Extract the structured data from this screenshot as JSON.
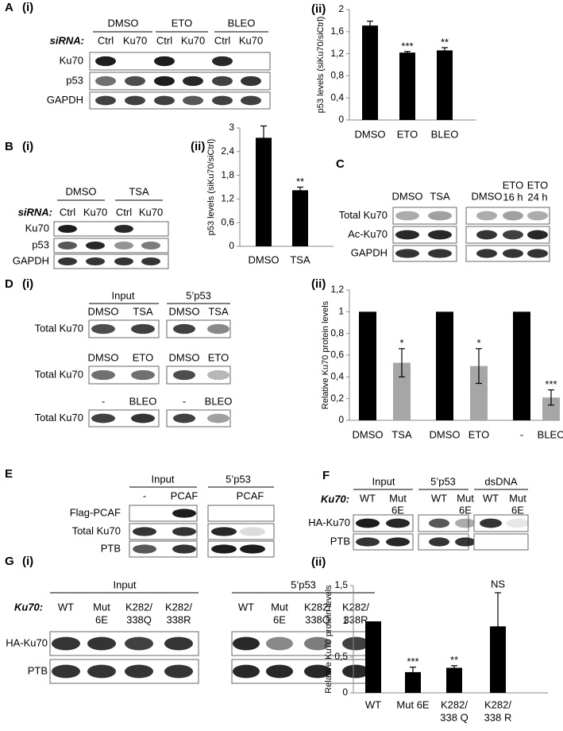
{
  "chart_data": [
    {
      "type": "bar",
      "title": "(ii)",
      "y_label": "p53 levels (siKu70/siCtrl)",
      "categories": [
        "DMSO",
        "ETO",
        "BLEO"
      ],
      "values": [
        1.71,
        1.22,
        1.26
      ],
      "errors": [
        0.08,
        0.02,
        0.05
      ],
      "annotations": [
        null,
        "***",
        "**"
      ],
      "color": "#000000",
      "ylim": [
        0,
        2
      ],
      "yticks": [
        0,
        {
          "value": 0.4,
          "label": "0,4"
        },
        {
          "value": 0.8,
          "label": "0,8"
        },
        {
          "value": 1.2,
          "label": "1,2"
        },
        {
          "value": 1.6,
          "label": "1,6"
        },
        2
      ]
    },
    {
      "type": "bar",
      "title": "(ii)",
      "y_label": "p53 levels (siKu70/siCtrl)",
      "categories": [
        "DMSO",
        "TSA"
      ],
      "values": [
        2.75,
        1.42
      ],
      "errors": [
        0.3,
        0.08
      ],
      "annotations": [
        null,
        "**"
      ],
      "color": "#000000",
      "ylim": [
        0,
        3
      ],
      "yticks": [
        0,
        {
          "value": 0.6,
          "label": "0,6"
        },
        {
          "value": 1.2,
          "label": "1,2"
        },
        {
          "value": 1.8,
          "label": "1,8"
        },
        {
          "value": 2.4,
          "label": "2,4"
        },
        3
      ]
    },
    {
      "type": "bar",
      "title": "(ii)",
      "y_label": "Relative Ku70 protein levels",
      "categories": [
        "DMSO",
        "TSA",
        "DMSO",
        "ETO",
        "-",
        "BLEO"
      ],
      "values": [
        1,
        0.53,
        1,
        0.5,
        1,
        0.21
      ],
      "errors": [
        null,
        0.13,
        null,
        0.16,
        null,
        0.07
      ],
      "annotations": [
        null,
        "*",
        null,
        "*",
        null,
        "***"
      ],
      "colors": [
        "#000000",
        "#a6a6a6",
        "#000000",
        "#a6a6a6",
        "#000000",
        "#a6a6a6"
      ],
      "ylim": [
        0,
        1.2
      ],
      "yticks": [
        0,
        {
          "value": 0.2,
          "label": "0,2"
        },
        {
          "value": 0.4,
          "label": "0,4"
        },
        {
          "value": 0.6,
          "label": "0,6"
        },
        {
          "value": 0.8,
          "label": "0,8"
        },
        1,
        {
          "value": 1.2,
          "label": "1,2"
        }
      ]
    },
    {
      "type": "bar",
      "title": "(ii)",
      "y_label": "Relative Ku70 protein levels",
      "categories": [
        "WT",
        "Mut 6E",
        [
          "K282/",
          "338 Q"
        ],
        [
          "K282/",
          "338 R"
        ]
      ],
      "values": [
        1,
        0.29,
        0.35,
        0.93
      ],
      "errors": [
        null,
        0.07,
        0.03,
        0.47
      ],
      "annotations": [
        null,
        "***",
        "**",
        "NS"
      ],
      "color": "#000000",
      "ylim": [
        0,
        1.5
      ],
      "yticks": [
        0,
        {
          "value": 0.5,
          "label": "0,5"
        },
        1,
        {
          "value": 1.5,
          "label": "1,5"
        }
      ]
    }
  ],
  "panels": {
    "A": {
      "label": "A",
      "blot": {
        "label": "(i)",
        "groups": [
          "DMSO",
          "ETO",
          "BLEO"
        ],
        "lane_key": "siRNA:",
        "lanes": [
          "Ctrl",
          "Ku70",
          "Ctrl",
          "Ku70",
          "Ctrl",
          "Ku70"
        ],
        "rows": [
          "Ku70",
          "p53",
          "GAPDH"
        ]
      }
    },
    "B": {
      "label": "B",
      "blot": {
        "label": "(i)",
        "groups": [
          "DMSO",
          "TSA"
        ],
        "lane_key": "siRNA:",
        "lanes": [
          "Ctrl",
          "Ku70",
          "Ctrl",
          "Ku70"
        ],
        "rows": [
          "Ku70",
          "p53",
          "GAPDH"
        ]
      }
    },
    "C": {
      "label": "C",
      "lanes": [
        "DMSO",
        "TSA",
        "DMSO",
        [
          "ETO",
          "16 h"
        ],
        [
          "ETO",
          "24 h"
        ]
      ],
      "rows": [
        "Total Ku70",
        "Ac-Ku70",
        "GAPDH"
      ]
    },
    "D": {
      "label": "D",
      "blot": {
        "label": "(i)",
        "groups": [
          "Input",
          "5’p53"
        ],
        "blocks": [
          {
            "lanes": [
              "DMSO",
              "TSA",
              "DMSO",
              "TSA"
            ],
            "row": "Total Ku70"
          },
          {
            "lanes": [
              "DMSO",
              "ETO",
              "DMSO",
              "ETO"
            ],
            "row": "Total Ku70"
          },
          {
            "lanes": [
              "-",
              "BLEO",
              "-",
              "BLEO"
            ],
            "row": "Total Ku70"
          }
        ]
      }
    },
    "E": {
      "label": "E",
      "groups": [
        "Input",
        "5’p53"
      ],
      "lanes": [
        "-",
        "PCAF",
        "PCAF"
      ],
      "rows": [
        "Flag-PCAF",
        "Total Ku70",
        "PTB"
      ]
    },
    "F": {
      "label": "F",
      "groups": [
        "Input",
        "5’p53",
        "dsDNA"
      ],
      "lane_key": "Ku70:",
      "lanes": [
        "WT",
        [
          "Mut",
          "6E"
        ],
        "WT",
        [
          "Mut",
          "6E"
        ],
        "WT",
        [
          "Mut",
          "6E"
        ]
      ],
      "rows": [
        "HA-Ku70",
        "PTB"
      ]
    },
    "G": {
      "label": "G",
      "blot": {
        "label": "(i)",
        "groups": [
          "Input",
          "5’p53"
        ],
        "lane_key": "Ku70:",
        "lanes": [
          "WT",
          [
            "Mut",
            "6E"
          ],
          [
            "K282/",
            "338Q"
          ],
          [
            "K282/",
            "338R"
          ],
          "WT",
          [
            "Mut",
            "6E"
          ],
          [
            "K282/",
            "338Q"
          ],
          [
            "K282/",
            "338R"
          ]
        ],
        "rows": [
          "HA-Ku70",
          "PTB"
        ]
      }
    }
  }
}
